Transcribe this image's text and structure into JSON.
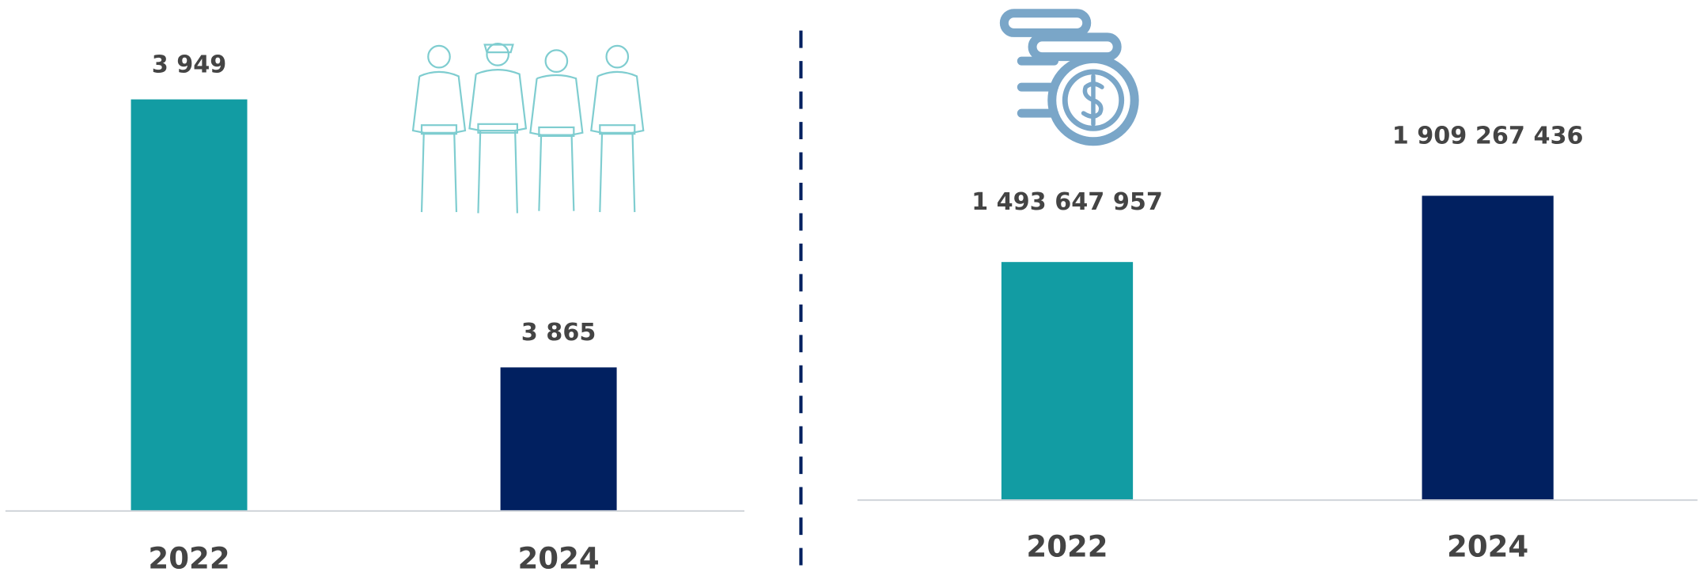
{
  "chart_data": [
    {
      "type": "bar",
      "categories": [
        "2022",
        "2024"
      ],
      "values": [
        3949,
        3865
      ],
      "value_labels": [
        "3 949",
        "3 865"
      ],
      "colors": [
        "#129ca3",
        "#012060"
      ],
      "ylim": [
        3820,
        3960
      ]
    },
    {
      "type": "bar",
      "categories": [
        "2022",
        "2024"
      ],
      "values": [
        1493647957,
        1909267436
      ],
      "value_labels": [
        "1 493 647 957",
        "1 909 267 436"
      ],
      "colors": [
        "#129ca3",
        "#012060"
      ],
      "ylim": [
        0,
        2100000000
      ]
    }
  ]
}
